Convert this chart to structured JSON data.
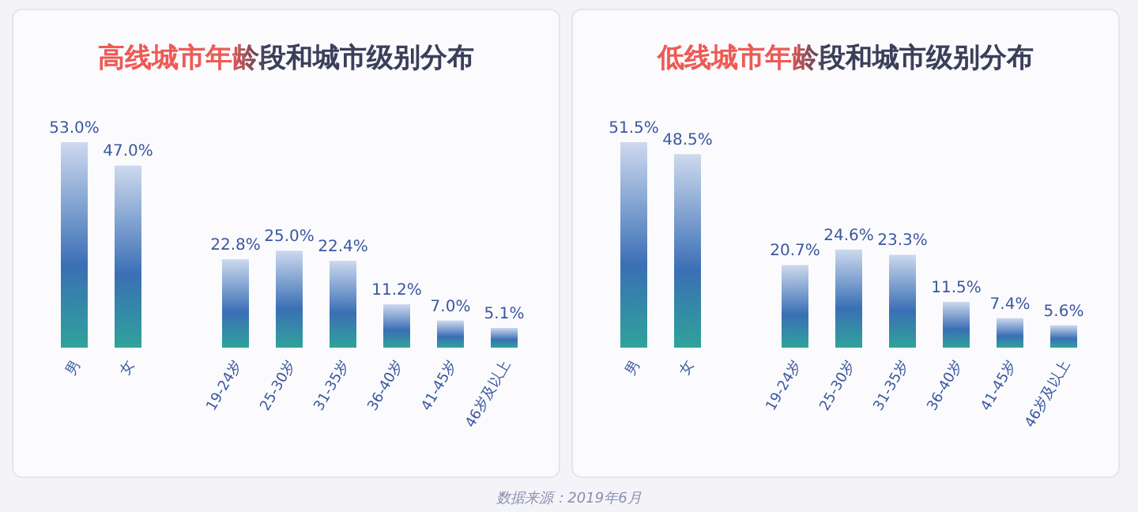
{
  "chart_data": [
    {
      "type": "bar",
      "title": "高线城市年龄段和城市级别分布",
      "categories": [
        "男",
        "女",
        null,
        "19-24岁",
        "25-30岁",
        "31-35岁",
        "36-40岁",
        "41-45岁",
        "46岁及以上"
      ],
      "values": [
        53.0,
        47.0,
        null,
        22.8,
        25.0,
        22.4,
        11.2,
        7.0,
        5.1
      ],
      "value_labels": [
        "53.0%",
        "47.0%",
        null,
        "22.8%",
        "25.0%",
        "22.4%",
        "11.2%",
        "7.0%",
        "5.1%"
      ],
      "color": "#3a6fb5"
    },
    {
      "type": "bar",
      "title": "低线城市年龄段和城市级别分布",
      "categories": [
        "男",
        "女",
        null,
        "19-24岁",
        "25-30岁",
        "31-35岁",
        "36-40岁",
        "41-45岁",
        "46岁及以上"
      ],
      "values": [
        51.5,
        48.5,
        null,
        20.7,
        24.6,
        23.3,
        11.5,
        7.4,
        5.6
      ],
      "value_labels": [
        "51.5%",
        "48.5%",
        null,
        "20.7%",
        "24.6%",
        "23.3%",
        "11.5%",
        "7.4%",
        "5.6%"
      ],
      "color": "#3a6fb5",
      "annotations": [
        "数据来源：2019年6月"
      ]
    }
  ]
}
